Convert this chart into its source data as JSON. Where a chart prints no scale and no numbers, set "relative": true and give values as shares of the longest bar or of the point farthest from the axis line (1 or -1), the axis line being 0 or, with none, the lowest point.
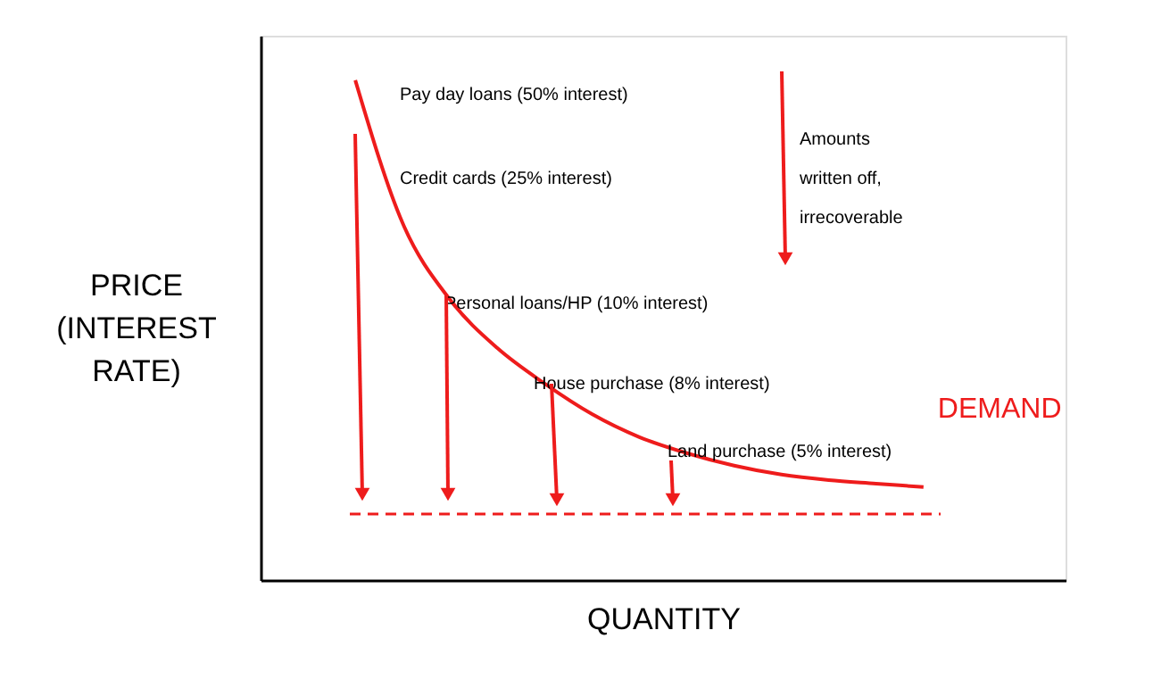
{
  "chart_data": {
    "type": "line",
    "relative": true,
    "xlabel": "QUANTITY",
    "ylabel": "PRICE\n(INTEREST\nRATE)",
    "categories": [
      null,
      null,
      null,
      null,
      null,
      null,
      null,
      null,
      null,
      null,
      null,
      null,
      null,
      null,
      null,
      null,
      null,
      null
    ],
    "series": [
      {
        "name": "DEMAND",
        "color": "#ee1c1c",
        "values": [
          null,
          null,
          1,
          0.714,
          0.561,
          0.464,
          0.393,
          0.332,
          0.286,
          0.254,
          0.229,
          0.211,
          0.2,
          0.193,
          0.186,
          null,
          null,
          null
        ]
      }
    ],
    "ref_lines": [
      {
        "axis": "y",
        "value": 0.132,
        "color": "#ee1c1c",
        "line_style": "dashed"
      }
    ],
    "annotations": [
      "Pay day loans (50% interest)",
      "Credit cards (25% interest)",
      "Personal loans/HP (10% interest)",
      "House purchase (8% interest)",
      "Land purchase (5% interest)",
      "Amounts\nwritten off,\nirrecoverable"
    ]
  }
}
